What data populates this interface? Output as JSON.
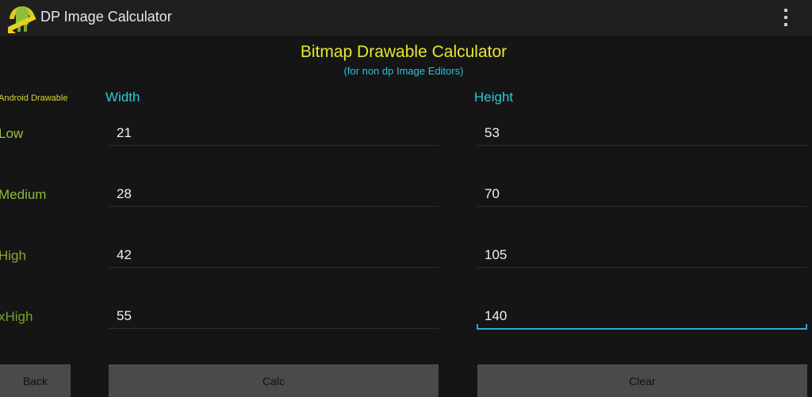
{
  "app": {
    "title": "DP Image Calculator",
    "icon": "android-ruler-icon",
    "menu_icon": "overflow-menu-icon"
  },
  "header": {
    "title": "Bitmap Drawable Calculator",
    "subtitle": "(for non dp Image Editors)"
  },
  "columns": {
    "drawable": "Android Drawable",
    "width": "Width",
    "height": "Height"
  },
  "rows": [
    {
      "label": "Low",
      "width": "21",
      "height": "53"
    },
    {
      "label": "Medium",
      "width": "28",
      "height": "70"
    },
    {
      "label": "High",
      "width": "42",
      "height": "105"
    },
    {
      "label": "xHigh",
      "width": "55",
      "height": "140"
    }
  ],
  "buttons": {
    "back": "Back",
    "calc": "Calc",
    "clear": "Clear"
  },
  "colors": {
    "title": "#e6e632",
    "accent": "#33bde0",
    "label": "#8fb83a",
    "focus": "#2aa8d8"
  }
}
